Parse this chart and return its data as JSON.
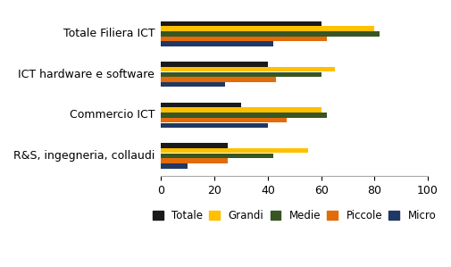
{
  "categories": [
    "Totale Filiera ICT",
    "ICT hardware e software",
    "Commercio ICT",
    "R&S, ingegneria, collaudi"
  ],
  "series": {
    "Totale": [
      60,
      40,
      30,
      25
    ],
    "Grandi": [
      80,
      65,
      60,
      55
    ],
    "Medie": [
      82,
      60,
      62,
      42
    ],
    "Piccole": [
      62,
      43,
      47,
      25
    ],
    "Micro": [
      42,
      24,
      40,
      10
    ]
  },
  "colors": {
    "Totale": "#1a1a1a",
    "Grandi": "#ffc000",
    "Medie": "#375623",
    "Piccole": "#e26b0a",
    "Micro": "#1f3864"
  },
  "xlim": [
    0,
    100
  ],
  "xticks": [
    0,
    20,
    40,
    60,
    80,
    100
  ],
  "legend_order": [
    "Totale",
    "Grandi",
    "Medie",
    "Piccole",
    "Micro"
  ],
  "background_color": "#ffffff",
  "tick_label_fontsize": 9,
  "category_fontsize": 9
}
